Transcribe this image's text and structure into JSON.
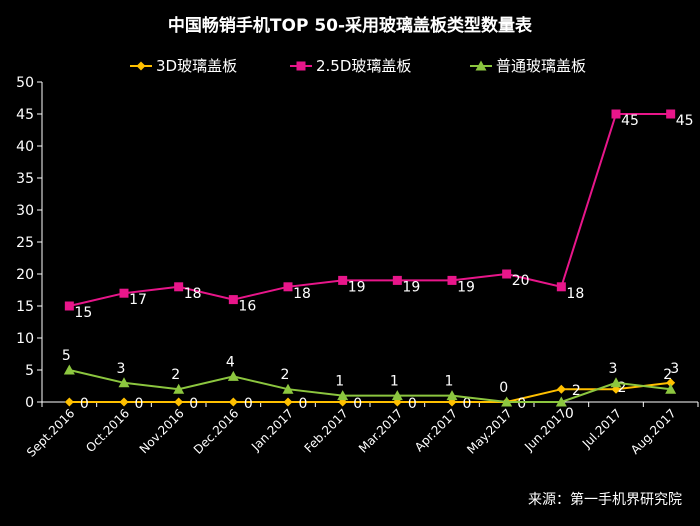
{
  "chart_data": {
    "type": "line",
    "title": "中国畅销手机TOP 50-采用玻璃盖板类型数量表",
    "categories": [
      "Sept.2016",
      "Oct.2016",
      "Nov.2016",
      "Dec.2016",
      "Jan.2017",
      "Feb.2017",
      "Mar.2017",
      "Apr.2017",
      "May.2017",
      "Jun.2017",
      "Jul.2017",
      "Aug.2017"
    ],
    "y_ticks": [
      "0",
      "5",
      "10",
      "15",
      "20",
      "25",
      "30",
      "35",
      "40",
      "45",
      "50"
    ],
    "ylim": [
      0,
      50
    ],
    "grid": false,
    "legend_position": "top",
    "source": "来源：第一手机界研究院",
    "series": [
      {
        "name": "3D玻璃盖板",
        "color": "#FFC000",
        "marker": "diamond",
        "values": [
          0,
          0,
          0,
          0,
          0,
          0,
          0,
          0,
          0,
          2,
          2,
          3
        ],
        "labels": [
          "0",
          "0",
          "0",
          "0",
          "0",
          "0",
          "0",
          "0",
          "0",
          "2",
          "2",
          "3"
        ]
      },
      {
        "name": "2.5D玻璃盖板",
        "color": "#E8168A",
        "marker": "square",
        "values": [
          15,
          17,
          18,
          16,
          18,
          19,
          19,
          19,
          20,
          18,
          45,
          45
        ],
        "labels": [
          "15",
          "17",
          "18",
          "16",
          "18",
          "19",
          "19",
          "19",
          "20",
          "18",
          "45",
          "45"
        ]
      },
      {
        "name": "普通玻璃盖板",
        "color": "#8CC63F",
        "marker": "triangle",
        "values": [
          5,
          3,
          2,
          4,
          2,
          1,
          1,
          1,
          0,
          0,
          3,
          2
        ],
        "labels": [
          "5",
          "3",
          "2",
          "4",
          "2",
          "1",
          "1",
          "1",
          "0",
          "0",
          "3",
          "2"
        ]
      }
    ]
  }
}
